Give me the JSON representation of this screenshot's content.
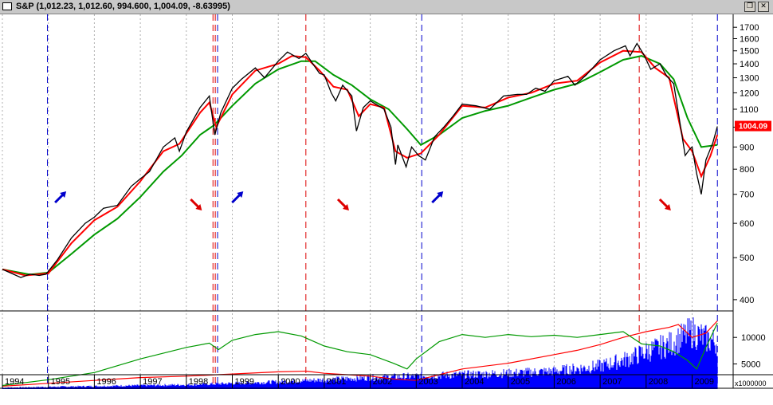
{
  "window": {
    "title": "S&P (1,012.23, 1,012.60, 994.600, 1,004.09, -8.63995)",
    "restore_glyph": "❐",
    "close_glyph": "✕"
  },
  "chart_data": {
    "type": "line",
    "symbol": "S&P",
    "last_value_label": "1004.09",
    "years": [
      "1994",
      "1995",
      "1996",
      "1997",
      "1998",
      "1999",
      "2000",
      "2001",
      "2002",
      "2003",
      "2004",
      "2005",
      "2006",
      "2007",
      "2008",
      "2009"
    ],
    "price_axis": {
      "scale": "log",
      "range": [
        380,
        1760
      ],
      "ticks": [
        400,
        500,
        600,
        700,
        800,
        900,
        1000,
        1100,
        1200,
        1300,
        1400,
        1500,
        1600,
        1700
      ]
    },
    "lower_axis": {
      "tick_labels": [
        "5000",
        "10000"
      ],
      "multiplier_label": "x1000000"
    },
    "price_series": [
      [
        1994.0,
        470
      ],
      [
        1994.2,
        460
      ],
      [
        1994.4,
        450
      ],
      [
        1994.6,
        458
      ],
      [
        1994.8,
        455
      ],
      [
        1994.95,
        458
      ],
      [
        1995.2,
        495
      ],
      [
        1995.5,
        555
      ],
      [
        1995.8,
        600
      ],
      [
        1996.0,
        620
      ],
      [
        1996.2,
        650
      ],
      [
        1996.5,
        660
      ],
      [
        1996.8,
        730
      ],
      [
        1997.0,
        760
      ],
      [
        1997.2,
        790
      ],
      [
        1997.5,
        900
      ],
      [
        1997.75,
        945
      ],
      [
        1997.85,
        880
      ],
      [
        1998.0,
        975
      ],
      [
        1998.3,
        1110
      ],
      [
        1998.5,
        1180
      ],
      [
        1998.62,
        960
      ],
      [
        1998.75,
        1080
      ],
      [
        1999.0,
        1230
      ],
      [
        1999.2,
        1290
      ],
      [
        1999.5,
        1370
      ],
      [
        1999.7,
        1300
      ],
      [
        2000.0,
        1420
      ],
      [
        2000.2,
        1490
      ],
      [
        2000.45,
        1440
      ],
      [
        2000.6,
        1480
      ],
      [
        2000.75,
        1400
      ],
      [
        2000.9,
        1330
      ],
      [
        2001.0,
        1320
      ],
      [
        2001.15,
        1200
      ],
      [
        2001.25,
        1150
      ],
      [
        2001.4,
        1250
      ],
      [
        2001.6,
        1180
      ],
      [
        2001.7,
        980
      ],
      [
        2001.85,
        1110
      ],
      [
        2002.0,
        1150
      ],
      [
        2002.3,
        1100
      ],
      [
        2002.45,
        1000
      ],
      [
        2002.55,
        820
      ],
      [
        2002.6,
        910
      ],
      [
        2002.78,
        810
      ],
      [
        2002.9,
        900
      ],
      [
        2003.05,
        860
      ],
      [
        2003.2,
        840
      ],
      [
        2003.4,
        950
      ],
      [
        2003.6,
        1000
      ],
      [
        2003.8,
        1060
      ],
      [
        2004.0,
        1130
      ],
      [
        2004.3,
        1120
      ],
      [
        2004.6,
        1100
      ],
      [
        2004.9,
        1180
      ],
      [
        2005.2,
        1190
      ],
      [
        2005.4,
        1190
      ],
      [
        2005.6,
        1230
      ],
      [
        2005.8,
        1210
      ],
      [
        2006.0,
        1280
      ],
      [
        2006.3,
        1310
      ],
      [
        2006.45,
        1250
      ],
      [
        2006.7,
        1320
      ],
      [
        2007.0,
        1430
      ],
      [
        2007.3,
        1500
      ],
      [
        2007.55,
        1540
      ],
      [
        2007.65,
        1460
      ],
      [
        2007.8,
        1560
      ],
      [
        2007.95,
        1470
      ],
      [
        2008.1,
        1360
      ],
      [
        2008.3,
        1400
      ],
      [
        2008.45,
        1310
      ],
      [
        2008.6,
        1260
      ],
      [
        2008.75,
        1000
      ],
      [
        2008.85,
        860
      ],
      [
        2008.95,
        890
      ],
      [
        2009.0,
        900
      ],
      [
        2009.1,
        780
      ],
      [
        2009.2,
        700
      ],
      [
        2009.3,
        840
      ],
      [
        2009.45,
        920
      ],
      [
        2009.55,
        1004
      ]
    ],
    "fast_ma_series": [
      [
        1994.0,
        470
      ],
      [
        1994.5,
        455
      ],
      [
        1995.0,
        460
      ],
      [
        1995.5,
        540
      ],
      [
        1996.0,
        610
      ],
      [
        1996.5,
        655
      ],
      [
        1997.0,
        750
      ],
      [
        1997.5,
        880
      ],
      [
        1997.85,
        915
      ],
      [
        1998.3,
        1080
      ],
      [
        1998.5,
        1140
      ],
      [
        1998.65,
        1000
      ],
      [
        1999.0,
        1190
      ],
      [
        1999.5,
        1350
      ],
      [
        2000.0,
        1400
      ],
      [
        2000.3,
        1460
      ],
      [
        2000.6,
        1450
      ],
      [
        2000.9,
        1350
      ],
      [
        2001.2,
        1240
      ],
      [
        2001.5,
        1220
      ],
      [
        2001.75,
        1060
      ],
      [
        2002.0,
        1130
      ],
      [
        2002.3,
        1110
      ],
      [
        2002.55,
        880
      ],
      [
        2002.8,
        850
      ],
      [
        2003.1,
        870
      ],
      [
        2003.5,
        960
      ],
      [
        2004.0,
        1120
      ],
      [
        2004.5,
        1110
      ],
      [
        2005.0,
        1170
      ],
      [
        2005.5,
        1200
      ],
      [
        2006.0,
        1260
      ],
      [
        2006.5,
        1280
      ],
      [
        2007.0,
        1410
      ],
      [
        2007.5,
        1500
      ],
      [
        2007.9,
        1490
      ],
      [
        2008.2,
        1370
      ],
      [
        2008.5,
        1300
      ],
      [
        2008.8,
        940
      ],
      [
        2009.0,
        880
      ],
      [
        2009.2,
        770
      ],
      [
        2009.4,
        860
      ],
      [
        2009.55,
        960
      ]
    ],
    "slow_ma_series": [
      [
        1994.0,
        470
      ],
      [
        1994.6,
        457
      ],
      [
        1995.0,
        462
      ],
      [
        1995.5,
        510
      ],
      [
        1996.0,
        565
      ],
      [
        1996.5,
        615
      ],
      [
        1997.0,
        690
      ],
      [
        1997.5,
        790
      ],
      [
        1997.9,
        860
      ],
      [
        1998.3,
        960
      ],
      [
        1998.6,
        1010
      ],
      [
        1999.0,
        1120
      ],
      [
        1999.5,
        1260
      ],
      [
        2000.0,
        1360
      ],
      [
        2000.5,
        1420
      ],
      [
        2000.8,
        1420
      ],
      [
        2001.2,
        1320
      ],
      [
        2001.6,
        1250
      ],
      [
        2002.0,
        1160
      ],
      [
        2002.4,
        1100
      ],
      [
        2002.8,
        990
      ],
      [
        2003.1,
        910
      ],
      [
        2003.5,
        960
      ],
      [
        2004.0,
        1050
      ],
      [
        2004.5,
        1090
      ],
      [
        2005.0,
        1120
      ],
      [
        2005.5,
        1170
      ],
      [
        2006.0,
        1220
      ],
      [
        2006.5,
        1260
      ],
      [
        2007.0,
        1340
      ],
      [
        2007.5,
        1430
      ],
      [
        2007.9,
        1460
      ],
      [
        2008.3,
        1400
      ],
      [
        2008.6,
        1290
      ],
      [
        2008.9,
        1050
      ],
      [
        2009.2,
        900
      ],
      [
        2009.55,
        910
      ]
    ],
    "lower_green_series": [
      [
        1994.0,
        5
      ],
      [
        1995.0,
        13
      ],
      [
        1996.0,
        23
      ],
      [
        1997.0,
        42
      ],
      [
        1998.0,
        58
      ],
      [
        1998.5,
        64
      ],
      [
        1998.7,
        55
      ],
      [
        1999.0,
        68
      ],
      [
        1999.5,
        76
      ],
      [
        2000.0,
        80
      ],
      [
        2000.5,
        74
      ],
      [
        2001.0,
        60
      ],
      [
        2001.5,
        52
      ],
      [
        2002.0,
        48
      ],
      [
        2002.5,
        36
      ],
      [
        2002.8,
        28
      ],
      [
        2003.0,
        42
      ],
      [
        2003.5,
        66
      ],
      [
        2004.0,
        76
      ],
      [
        2004.5,
        72
      ],
      [
        2005.0,
        76
      ],
      [
        2005.5,
        73
      ],
      [
        2006.0,
        75
      ],
      [
        2006.5,
        72
      ],
      [
        2007.0,
        76
      ],
      [
        2007.5,
        80
      ],
      [
        2007.9,
        63
      ],
      [
        2008.3,
        60
      ],
      [
        2008.6,
        52
      ],
      [
        2008.9,
        40
      ],
      [
        2009.1,
        28
      ],
      [
        2009.3,
        58
      ],
      [
        2009.55,
        92
      ]
    ],
    "lower_red_series": [
      [
        1994.0,
        4
      ],
      [
        1995.0,
        8
      ],
      [
        1996.0,
        12
      ],
      [
        1997.0,
        16
      ],
      [
        1998.0,
        18
      ],
      [
        1999.0,
        21
      ],
      [
        2000.0,
        24
      ],
      [
        2000.6,
        25
      ],
      [
        2001.0,
        22
      ],
      [
        2001.5,
        20
      ],
      [
        2002.0,
        18
      ],
      [
        2002.5,
        14
      ],
      [
        2003.0,
        12
      ],
      [
        2003.5,
        20
      ],
      [
        2004.0,
        28
      ],
      [
        2005.0,
        36
      ],
      [
        2006.0,
        48
      ],
      [
        2006.5,
        54
      ],
      [
        2007.0,
        62
      ],
      [
        2007.5,
        72
      ],
      [
        2008.0,
        80
      ],
      [
        2008.5,
        86
      ],
      [
        2008.7,
        90
      ],
      [
        2009.0,
        72
      ],
      [
        2009.3,
        78
      ],
      [
        2009.55,
        95
      ]
    ],
    "volume_series": [
      [
        1994.0,
        2
      ],
      [
        1995.0,
        3
      ],
      [
        1996.0,
        4
      ],
      [
        1997.0,
        5
      ],
      [
        1998.0,
        6
      ],
      [
        1999.0,
        8
      ],
      [
        2000.0,
        10
      ],
      [
        2001.0,
        13
      ],
      [
        2002.0,
        16
      ],
      [
        2003.0,
        18
      ],
      [
        2004.0,
        20
      ],
      [
        2005.0,
        22
      ],
      [
        2006.0,
        25
      ],
      [
        2007.0,
        32
      ],
      [
        2007.6,
        42
      ],
      [
        2008.0,
        52
      ],
      [
        2008.5,
        62
      ],
      [
        2008.8,
        72
      ],
      [
        2009.0,
        80
      ],
      [
        2009.3,
        70
      ],
      [
        2009.55,
        65
      ]
    ],
    "buy_signals": [
      1994.98,
      1998.68,
      2003.12,
      2009.55
    ],
    "sell_signals": [
      1998.58,
      1998.63,
      2000.6,
      2007.85
    ],
    "buy_arrows": [
      1995.25,
      1999.1,
      2003.45
    ],
    "sell_arrows": [
      1998.2,
      2001.4,
      2008.4
    ],
    "colors": {
      "price": "#000000",
      "fast_ma": "#ff0000",
      "slow_ma": "#009900",
      "volume": "#0000ff",
      "buy": "#0000cc",
      "sell": "#dd0000",
      "last_value_bg": "#ff0000"
    }
  }
}
